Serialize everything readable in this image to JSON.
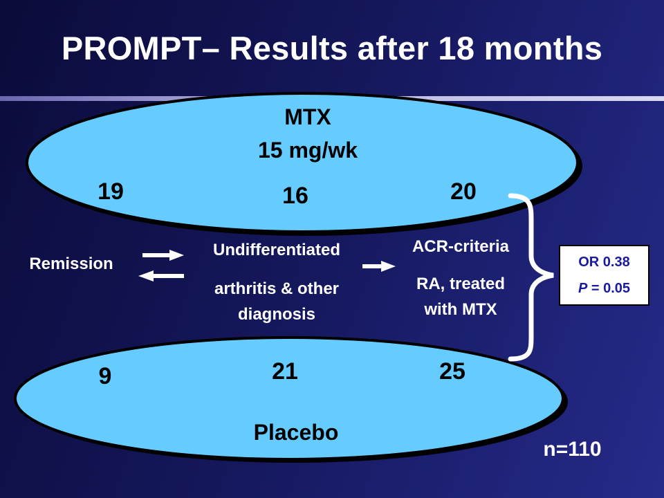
{
  "title": "PROMPT– Results after 18 months",
  "mtx": {
    "label": "MTX",
    "dose": "15 mg/wk",
    "remission": "19",
    "undifferentiated": "16",
    "ra": "20"
  },
  "placebo": {
    "label": "Placebo",
    "remission": "9",
    "undifferentiated": "21",
    "ra": "25"
  },
  "labels": {
    "remission": "Remission",
    "undiff_line1": "Undifferentiated",
    "undiff_line2": "arthritis & other",
    "undiff_line3": "diagnosis",
    "acr": "ACR-criteria",
    "ra_line1": "RA, treated",
    "ra_line2": "with MTX"
  },
  "stats": {
    "or": "OR 0.38",
    "p_symbol": "P",
    "p_rest": " = 0.05"
  },
  "sample": "n=110",
  "colors": {
    "ellipse_fill": "#66ccff",
    "ellipse_stroke": "#000000",
    "text_light": "#ffffff",
    "stat_text": "#1a1aa0"
  }
}
